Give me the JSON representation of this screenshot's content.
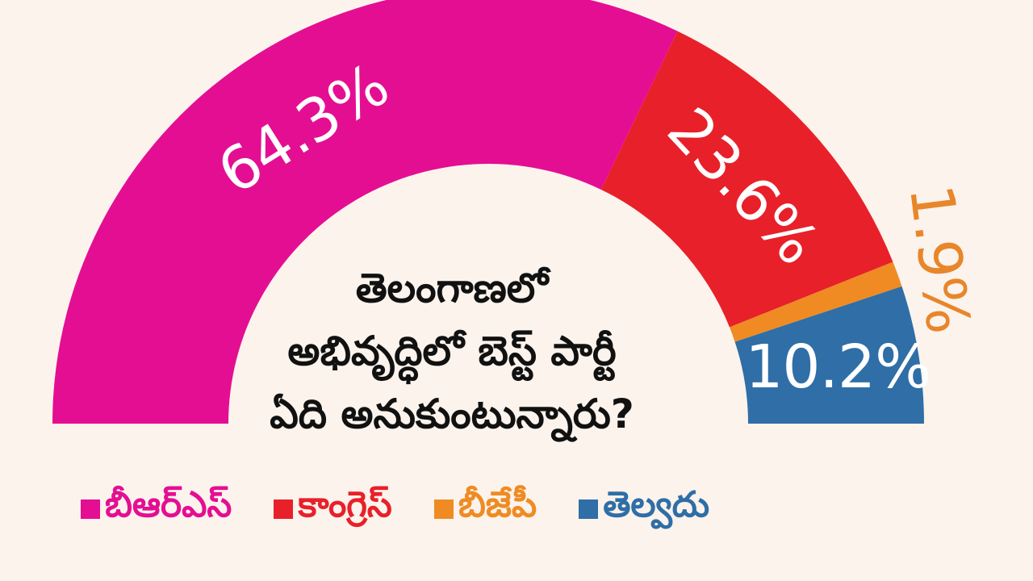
{
  "chart_data": {
    "type": "pie",
    "variant": "semi-donut",
    "categories": [
      "బీఆర్ఎస్",
      "కాంగ్రెస్",
      "బీజేపీ",
      "తెల్వదు"
    ],
    "values": [
      64.3,
      23.6,
      1.9,
      10.2
    ],
    "value_labels": [
      "64.3%",
      "23.6%",
      "1.9%",
      "10.2%"
    ],
    "colors": [
      "#e40e93",
      "#e8202a",
      "#ef8b22",
      "#2f6ea6"
    ],
    "center_text": [
      "తెలంగాణలో",
      "అభివృద్ధిలో బెస్ట్ పార్టీ",
      "ఏది అనుకుంటున్నారు?"
    ],
    "legend_position": "bottom"
  }
}
